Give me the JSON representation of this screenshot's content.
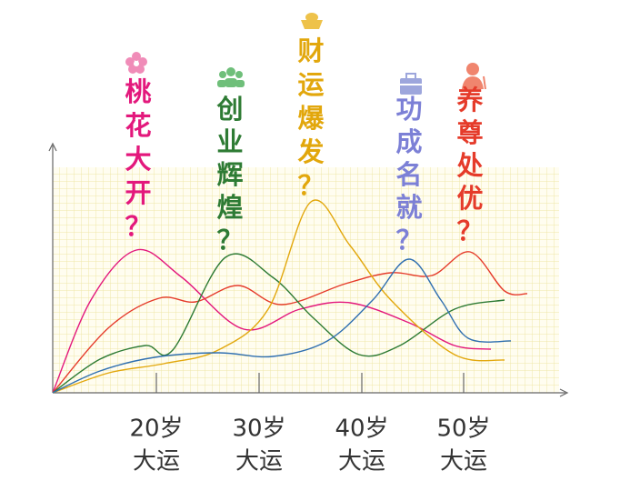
{
  "annotations": [
    {
      "text": "桃花大开？",
      "color": "#e3187c"
    },
    {
      "text": "创业辉煌？",
      "color": "#2e7b34"
    },
    {
      "text": "财运爆发？",
      "color": "#e2a70c"
    },
    {
      "text": "功成名就？",
      "color": "#7c80d6"
    },
    {
      "text": "养尊处优？",
      "color": "#e53b2a"
    }
  ],
  "x_labels": [
    {
      "age": "20岁",
      "text": "大运"
    },
    {
      "age": "30岁",
      "text": "大运"
    },
    {
      "age": "40岁",
      "text": "大运"
    },
    {
      "age": "50岁",
      "text": "大运"
    }
  ]
}
